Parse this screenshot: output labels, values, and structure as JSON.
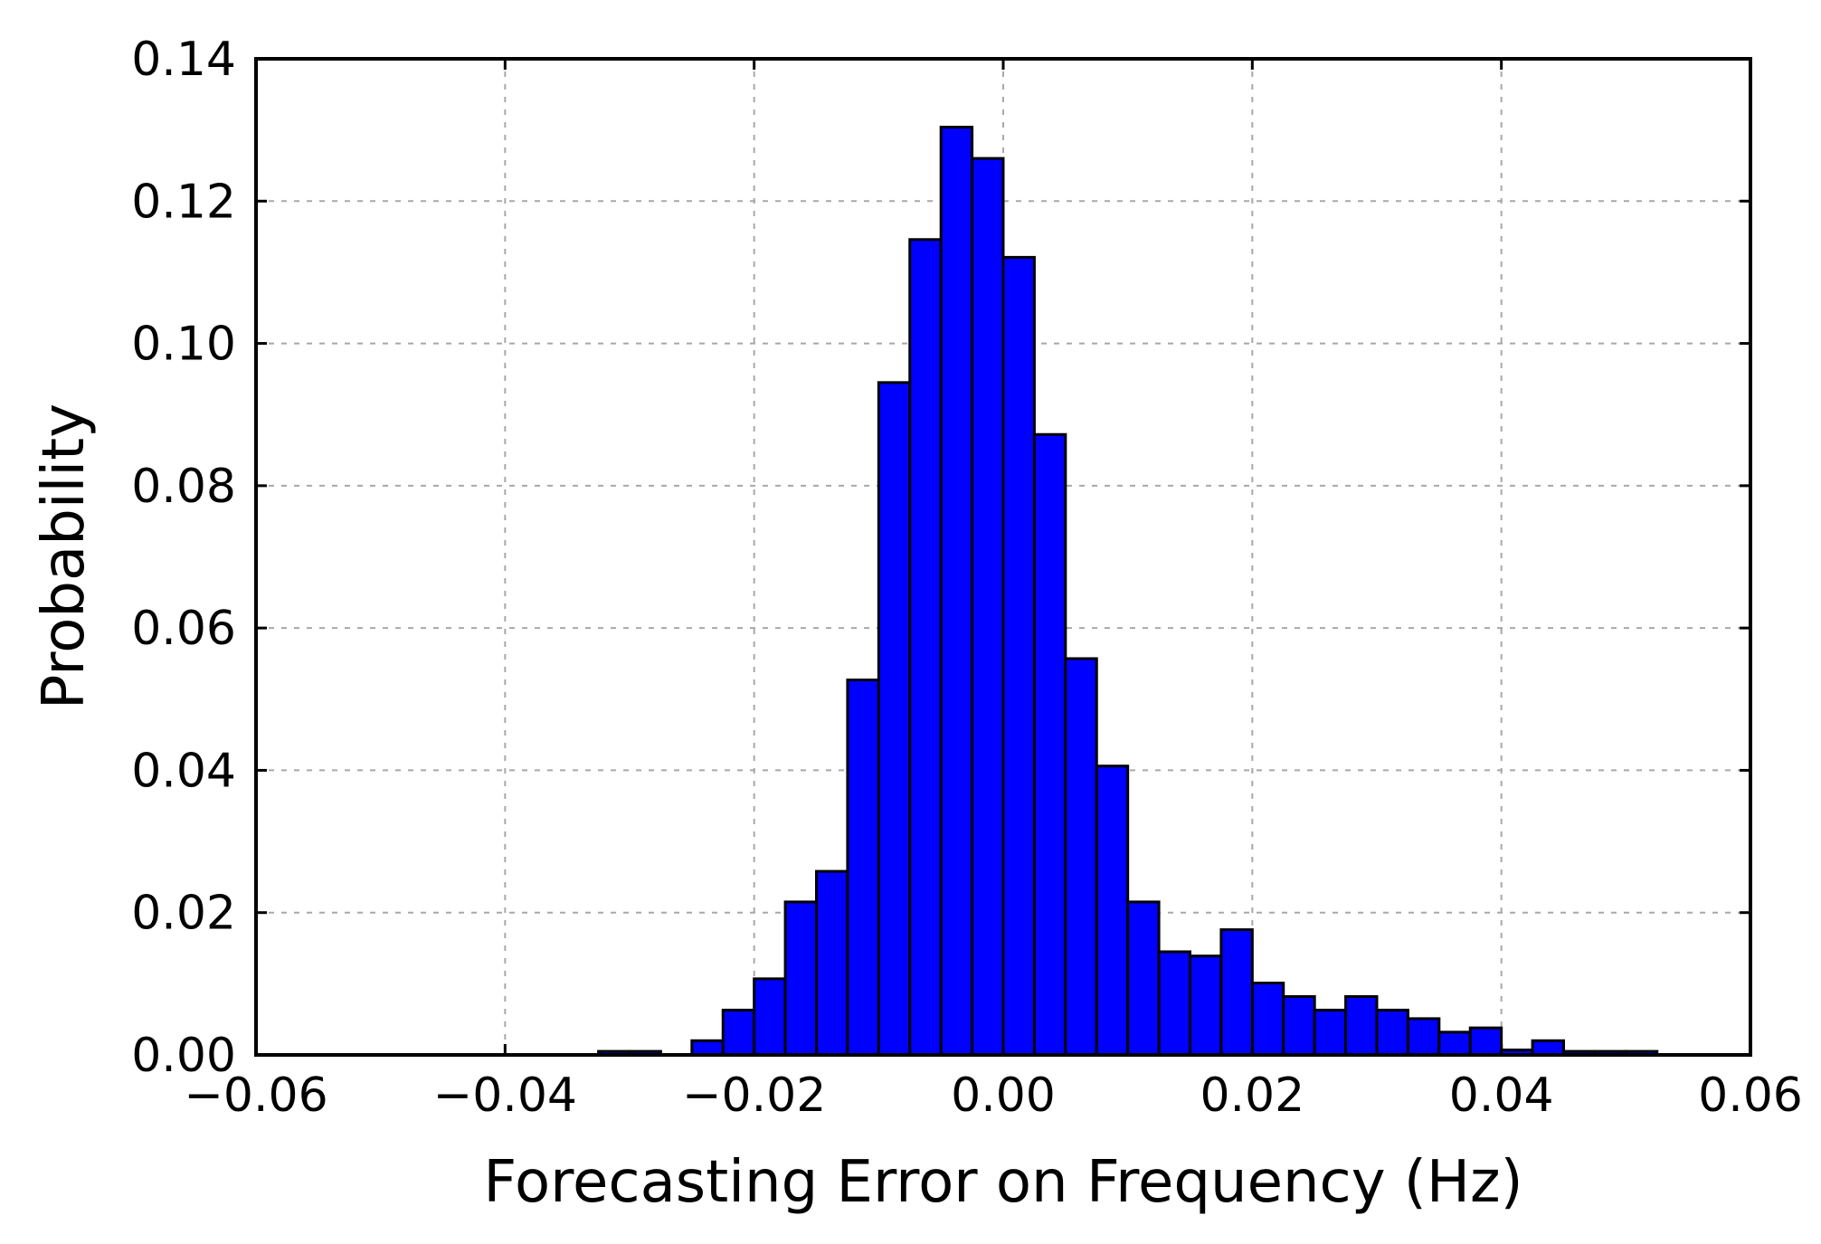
{
  "chart_data": {
    "type": "bar",
    "title": "",
    "xlabel": "Forecasting Error on Frequency (Hz)",
    "ylabel": "Probability",
    "xlim": [
      -0.06,
      0.06
    ],
    "ylim": [
      0,
      0.14
    ],
    "xticks": [
      -0.06,
      -0.04,
      -0.02,
      0.0,
      0.02,
      0.04,
      0.06
    ],
    "xtick_labels": [
      "−0.06",
      "−0.04",
      "−0.02",
      "0.00",
      "0.02",
      "0.04",
      "0.06"
    ],
    "yticks": [
      0.0,
      0.02,
      0.04,
      0.06,
      0.08,
      0.1,
      0.12,
      0.14
    ],
    "ytick_labels": [
      "0.00",
      "0.02",
      "0.04",
      "0.06",
      "0.08",
      "0.10",
      "0.12",
      "0.14"
    ],
    "grid": true,
    "bar_color": "#0000ff",
    "edge_color": "#000000",
    "bin_width": 0.0025,
    "bins": [
      {
        "x0": -0.0325,
        "value": 0.0005
      },
      {
        "x0": -0.03,
        "value": 0.0005
      },
      {
        "x0": -0.025,
        "value": 0.002
      },
      {
        "x0": -0.0225,
        "value": 0.0063
      },
      {
        "x0": -0.02,
        "value": 0.0107
      },
      {
        "x0": -0.0175,
        "value": 0.0215
      },
      {
        "x0": -0.015,
        "value": 0.0258
      },
      {
        "x0": -0.0125,
        "value": 0.0527
      },
      {
        "x0": -0.01,
        "value": 0.0945
      },
      {
        "x0": -0.0075,
        "value": 0.1146
      },
      {
        "x0": -0.005,
        "value": 0.1304
      },
      {
        "x0": -0.0025,
        "value": 0.126
      },
      {
        "x0": 0.0,
        "value": 0.1121
      },
      {
        "x0": 0.0025,
        "value": 0.0872
      },
      {
        "x0": 0.005,
        "value": 0.0557
      },
      {
        "x0": 0.0075,
        "value": 0.0406
      },
      {
        "x0": 0.01,
        "value": 0.0215
      },
      {
        "x0": 0.0125,
        "value": 0.0145
      },
      {
        "x0": 0.015,
        "value": 0.0139
      },
      {
        "x0": 0.0175,
        "value": 0.0176
      },
      {
        "x0": 0.02,
        "value": 0.0101
      },
      {
        "x0": 0.0225,
        "value": 0.0082
      },
      {
        "x0": 0.025,
        "value": 0.0063
      },
      {
        "x0": 0.0275,
        "value": 0.0082
      },
      {
        "x0": 0.03,
        "value": 0.0063
      },
      {
        "x0": 0.0325,
        "value": 0.0051
      },
      {
        "x0": 0.035,
        "value": 0.0032
      },
      {
        "x0": 0.0375,
        "value": 0.0038
      },
      {
        "x0": 0.04,
        "value": 0.0007
      },
      {
        "x0": 0.0425,
        "value": 0.002
      },
      {
        "x0": 0.045,
        "value": 0.0005
      },
      {
        "x0": 0.0475,
        "value": 0.0005
      },
      {
        "x0": 0.05,
        "value": 0.0005
      }
    ]
  }
}
